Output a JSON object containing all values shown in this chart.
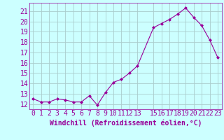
{
  "x": [
    0,
    1,
    2,
    3,
    4,
    5,
    6,
    7,
    8,
    9,
    10,
    11,
    12,
    13,
    15,
    16,
    17,
    18,
    19,
    20,
    21,
    22,
    23
  ],
  "y": [
    12.5,
    12.2,
    12.2,
    12.5,
    12.4,
    12.2,
    12.2,
    12.8,
    11.9,
    13.1,
    14.1,
    14.4,
    15.0,
    15.7,
    19.4,
    19.8,
    20.2,
    20.7,
    21.3,
    20.4,
    19.6,
    18.2,
    16.5
  ],
  "line_color": "#990099",
  "marker": "D",
  "marker_size": 2.0,
  "bg_color": "#ccffff",
  "grid_color": "#aacccc",
  "xlabel": "Windchill (Refroidissement éolien,°C)",
  "xlabel_fontsize": 7,
  "tick_fontsize": 7,
  "ylim": [
    11.5,
    21.8
  ],
  "xlim": [
    -0.5,
    23.5
  ],
  "yticks": [
    12,
    13,
    14,
    15,
    16,
    17,
    18,
    19,
    20,
    21
  ],
  "xtick_labels": [
    "0",
    "1",
    "2",
    "3",
    "4",
    "5",
    "6",
    "7",
    "8",
    "9",
    "10",
    "11",
    "12",
    "13",
    "15",
    "16",
    "17",
    "18",
    "19",
    "20",
    "21",
    "22",
    "23"
  ],
  "xtick_positions": [
    0,
    1,
    2,
    3,
    4,
    5,
    6,
    7,
    8,
    9,
    10,
    11,
    12,
    13,
    15,
    16,
    17,
    18,
    19,
    20,
    21,
    22,
    23
  ]
}
